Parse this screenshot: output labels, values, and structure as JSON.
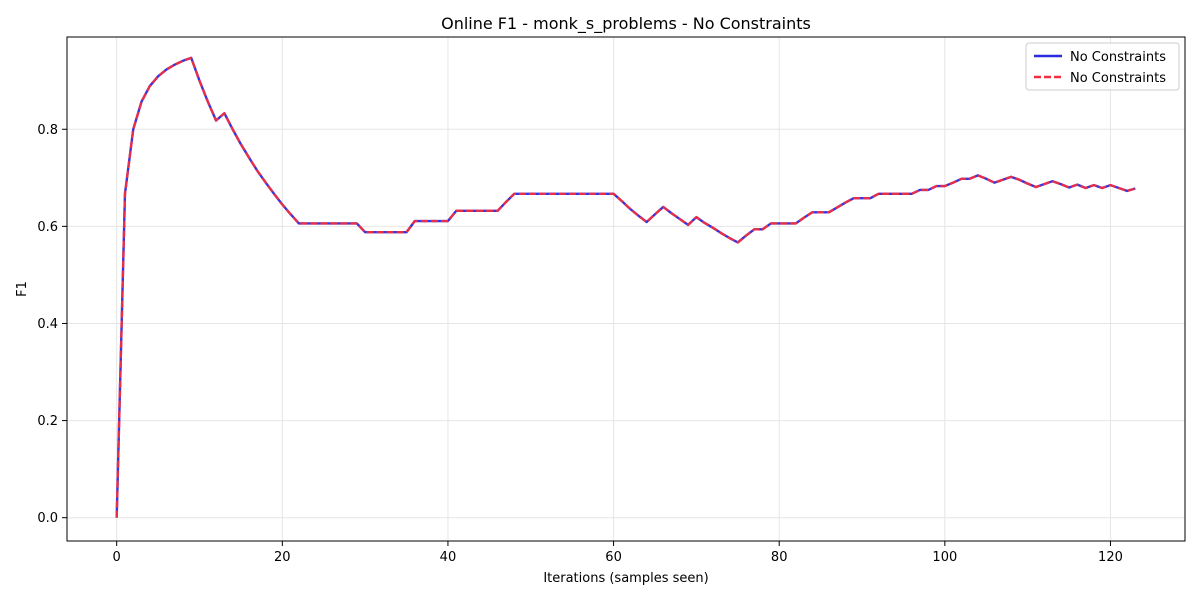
{
  "chart_data": {
    "type": "line",
    "title": "Online F1 - monk_s_problems - No Constraints",
    "xlabel": "Iterations (samples seen)",
    "ylabel": "F1",
    "xlim": [
      -6,
      129
    ],
    "ylim": [
      -0.048,
      0.99
    ],
    "xticks": [
      0,
      20,
      40,
      60,
      80,
      100,
      120
    ],
    "yticks": [
      0.0,
      0.2,
      0.4,
      0.6,
      0.8
    ],
    "grid": true,
    "legend_position": "top-right",
    "x": [
      0,
      1,
      2,
      3,
      4,
      5,
      6,
      7,
      8,
      9,
      10,
      11,
      12,
      13,
      14,
      15,
      16,
      17,
      18,
      19,
      20,
      21,
      22,
      23,
      24,
      25,
      26,
      27,
      28,
      29,
      30,
      31,
      32,
      33,
      34,
      35,
      36,
      37,
      38,
      39,
      40,
      41,
      42,
      43,
      44,
      45,
      46,
      47,
      48,
      49,
      50,
      51,
      52,
      53,
      54,
      55,
      56,
      57,
      58,
      59,
      60,
      61,
      62,
      63,
      64,
      65,
      66,
      67,
      68,
      69,
      70,
      71,
      72,
      73,
      74,
      75,
      76,
      77,
      78,
      79,
      80,
      81,
      82,
      83,
      84,
      85,
      86,
      87,
      88,
      89,
      90,
      91,
      92,
      93,
      94,
      95,
      96,
      97,
      98,
      99,
      100,
      101,
      102,
      103,
      104,
      105,
      106,
      107,
      108,
      109,
      110,
      111,
      112,
      113,
      114,
      115,
      116,
      117,
      118,
      119,
      120,
      121,
      122,
      123
    ],
    "series": [
      {
        "name": "No Constraints",
        "color": "#2a2ae0",
        "style": "solid",
        "values": [
          0.0,
          0.667,
          0.8,
          0.857,
          0.889,
          0.909,
          0.923,
          0.933,
          0.941,
          0.947,
          0.9,
          0.857,
          0.818,
          0.833,
          0.8,
          0.769,
          0.741,
          0.714,
          0.69,
          0.667,
          0.645,
          0.625,
          0.606,
          0.606,
          0.606,
          0.606,
          0.606,
          0.606,
          0.606,
          0.606,
          0.588,
          0.588,
          0.588,
          0.588,
          0.588,
          0.588,
          0.611,
          0.611,
          0.611,
          0.611,
          0.611,
          0.632,
          0.632,
          0.632,
          0.632,
          0.632,
          0.632,
          0.65,
          0.667,
          0.667,
          0.667,
          0.667,
          0.667,
          0.667,
          0.667,
          0.667,
          0.667,
          0.667,
          0.667,
          0.667,
          0.667,
          0.652,
          0.636,
          0.622,
          0.609,
          0.625,
          0.64,
          0.627,
          0.615,
          0.603,
          0.619,
          0.607,
          0.597,
          0.586,
          0.576,
          0.567,
          0.581,
          0.594,
          0.594,
          0.606,
          0.606,
          0.606,
          0.606,
          0.618,
          0.629,
          0.629,
          0.629,
          0.639,
          0.649,
          0.658,
          0.658,
          0.658,
          0.667,
          0.667,
          0.667,
          0.667,
          0.667,
          0.675,
          0.675,
          0.683,
          0.683,
          0.69,
          0.698,
          0.698,
          0.705,
          0.698,
          0.69,
          0.696,
          0.702,
          0.696,
          0.688,
          0.681,
          0.687,
          0.693,
          0.687,
          0.68,
          0.686,
          0.679,
          0.685,
          0.679,
          0.685,
          0.679,
          0.673,
          0.678
        ]
      },
      {
        "name": "No Constraints",
        "color": "#f03040",
        "style": "dashed",
        "values": [
          0.0,
          0.667,
          0.8,
          0.857,
          0.889,
          0.909,
          0.923,
          0.933,
          0.941,
          0.947,
          0.9,
          0.857,
          0.818,
          0.833,
          0.8,
          0.769,
          0.741,
          0.714,
          0.69,
          0.667,
          0.645,
          0.625,
          0.606,
          0.606,
          0.606,
          0.606,
          0.606,
          0.606,
          0.606,
          0.606,
          0.588,
          0.588,
          0.588,
          0.588,
          0.588,
          0.588,
          0.611,
          0.611,
          0.611,
          0.611,
          0.611,
          0.632,
          0.632,
          0.632,
          0.632,
          0.632,
          0.632,
          0.65,
          0.667,
          0.667,
          0.667,
          0.667,
          0.667,
          0.667,
          0.667,
          0.667,
          0.667,
          0.667,
          0.667,
          0.667,
          0.667,
          0.652,
          0.636,
          0.622,
          0.609,
          0.625,
          0.64,
          0.627,
          0.615,
          0.603,
          0.619,
          0.607,
          0.597,
          0.586,
          0.576,
          0.567,
          0.581,
          0.594,
          0.594,
          0.606,
          0.606,
          0.606,
          0.606,
          0.618,
          0.629,
          0.629,
          0.629,
          0.639,
          0.649,
          0.658,
          0.658,
          0.658,
          0.667,
          0.667,
          0.667,
          0.667,
          0.667,
          0.675,
          0.675,
          0.683,
          0.683,
          0.69,
          0.698,
          0.698,
          0.705,
          0.698,
          0.69,
          0.696,
          0.702,
          0.696,
          0.688,
          0.681,
          0.687,
          0.693,
          0.687,
          0.68,
          0.686,
          0.679,
          0.685,
          0.679,
          0.685,
          0.679,
          0.673,
          0.678
        ]
      }
    ]
  }
}
